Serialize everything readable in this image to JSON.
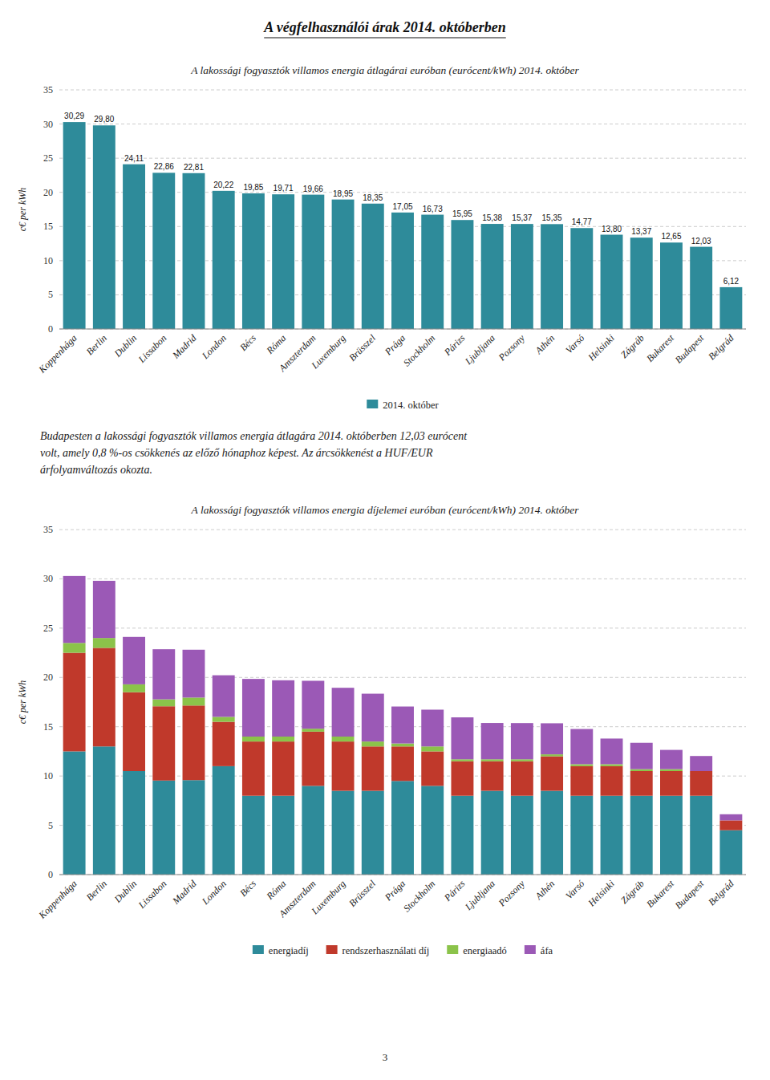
{
  "page_title": "A végfelhasználói árak 2014. októberben",
  "body_text": [
    "Budapesten a lakossági fogyasztók villamos energia átlagára 2014. októberben 12,03 eurócent",
    "volt, amely 0,8 %-os csökkenés az előző hónaphoz képest. Az árcsökkenést a HUF/EUR",
    "árfolyamváltozás okozta."
  ],
  "page_number": "3",
  "chart_data": [
    {
      "type": "bar",
      "title": "A lakossági fogyasztók villamos energia átlagárai euróban (eurócent/kWh) 2014. október",
      "ylabel": "c€ per kWh",
      "categories": [
        "Koppenhága",
        "Berlin",
        "Dublin",
        "Lissabon",
        "Madrid",
        "London",
        "Bécs",
        "Róma",
        "Amszterdam",
        "Luxemburg",
        "Brüsszel",
        "Prága",
        "Stockholm",
        "Párizs",
        "Ljubljana",
        "Pozsony",
        "Athén",
        "Varsó",
        "Helsinki",
        "Zágráb",
        "Bukarest",
        "Budapest",
        "Belgrád"
      ],
      "series": [
        {
          "name": "2014. október",
          "color": "#2E8B9A",
          "values": [
            30.29,
            29.8,
            24.11,
            22.86,
            22.81,
            20.22,
            19.85,
            19.71,
            19.66,
            18.95,
            18.35,
            17.05,
            16.73,
            15.95,
            15.38,
            15.37,
            15.35,
            14.77,
            13.8,
            13.37,
            12.65,
            12.03,
            6.12
          ],
          "value_labels": [
            "30,29",
            "29,80",
            "24,11",
            "22,86",
            "22,81",
            "20,22",
            "19,85",
            "19,71",
            "19,66",
            "18,95",
            "18,35",
            "17,05",
            "16,73",
            "15,95",
            "15,38",
            "15,37",
            "15,35",
            "14,77",
            "13,80",
            "13,37",
            "12,65",
            "12,03",
            "6,12"
          ]
        }
      ],
      "ylim": [
        0,
        35
      ],
      "yticks": [
        0,
        5,
        10,
        15,
        20,
        25,
        30,
        35
      ],
      "grid": true,
      "legend": "bottom",
      "data_labels": true
    },
    {
      "type": "bar",
      "title": "A lakossági fogyasztók villamos energia díjelemei euróban (eurócent/kWh) 2014. október",
      "ylabel": "c€ per kWh",
      "categories": [
        "Koppenhága",
        "Berlin",
        "Dublin",
        "Lissabon",
        "Madrid",
        "London",
        "Bécs",
        "Róma",
        "Amszterdam",
        "Luxemburg",
        "Brüsszel",
        "Prága",
        "Stockholm",
        "Párizs",
        "Ljubljana",
        "Pozsony",
        "Athén",
        "Varsó",
        "Helsinki",
        "Zágráb",
        "Bukarest",
        "Budapest",
        "Belgrád"
      ],
      "series": [
        {
          "name": "energiadíj",
          "color": "#2E8B9A",
          "values": [
            12.5,
            13.0,
            10.5,
            9.541739895,
            9.584033613,
            11.0,
            8.0,
            8.0,
            9.0,
            8.5,
            8.5,
            9.5,
            9.0,
            8.0,
            8.5,
            8.0,
            8.5,
            8.0,
            8.0,
            8.0,
            8.0,
            8.0,
            4.5
          ]
        },
        {
          "name": "rendszerhasználati díj",
          "color": "#C0392B",
          "values": [
            10.0,
            10.0,
            8.0,
            7.532952548,
            7.566342326,
            4.5,
            5.5,
            5.5,
            5.5,
            5.0,
            4.5,
            3.5,
            3.5,
            3.5,
            3.0,
            3.5,
            3.5,
            3.0,
            3.0,
            2.5,
            2.5,
            2.5,
            1.0
          ]
        },
        {
          "name": "energiaadó",
          "color": "#8BC34A",
          "values": [
            1.0,
            1.0,
            0.8,
            0.703075571,
            0.807076515,
            0.5,
            0.5,
            0.5,
            0.3,
            0.5,
            0.5,
            0.3,
            0.5,
            0.2,
            0.2,
            0.2,
            0.2,
            0.2,
            0.2,
            0.2,
            0.2,
            0.0,
            0.0
          ]
        },
        {
          "name": "áfa",
          "color": "#9B59B6",
          "values": [
            6.79,
            5.8,
            4.81,
            5.082231986,
            4.852547545,
            4.22,
            5.85,
            5.71,
            4.86,
            4.95,
            4.85,
            3.75,
            3.73,
            4.25,
            3.68,
            3.67,
            3.15,
            3.57,
            2.6,
            2.67,
            1.95,
            1.53,
            0.62
          ]
        }
      ],
      "ylim": [
        0,
        35
      ],
      "yticks": [
        0,
        5,
        10,
        15,
        20,
        25,
        30,
        35
      ],
      "grid": true,
      "legend": "bottom",
      "stacked": true
    }
  ]
}
